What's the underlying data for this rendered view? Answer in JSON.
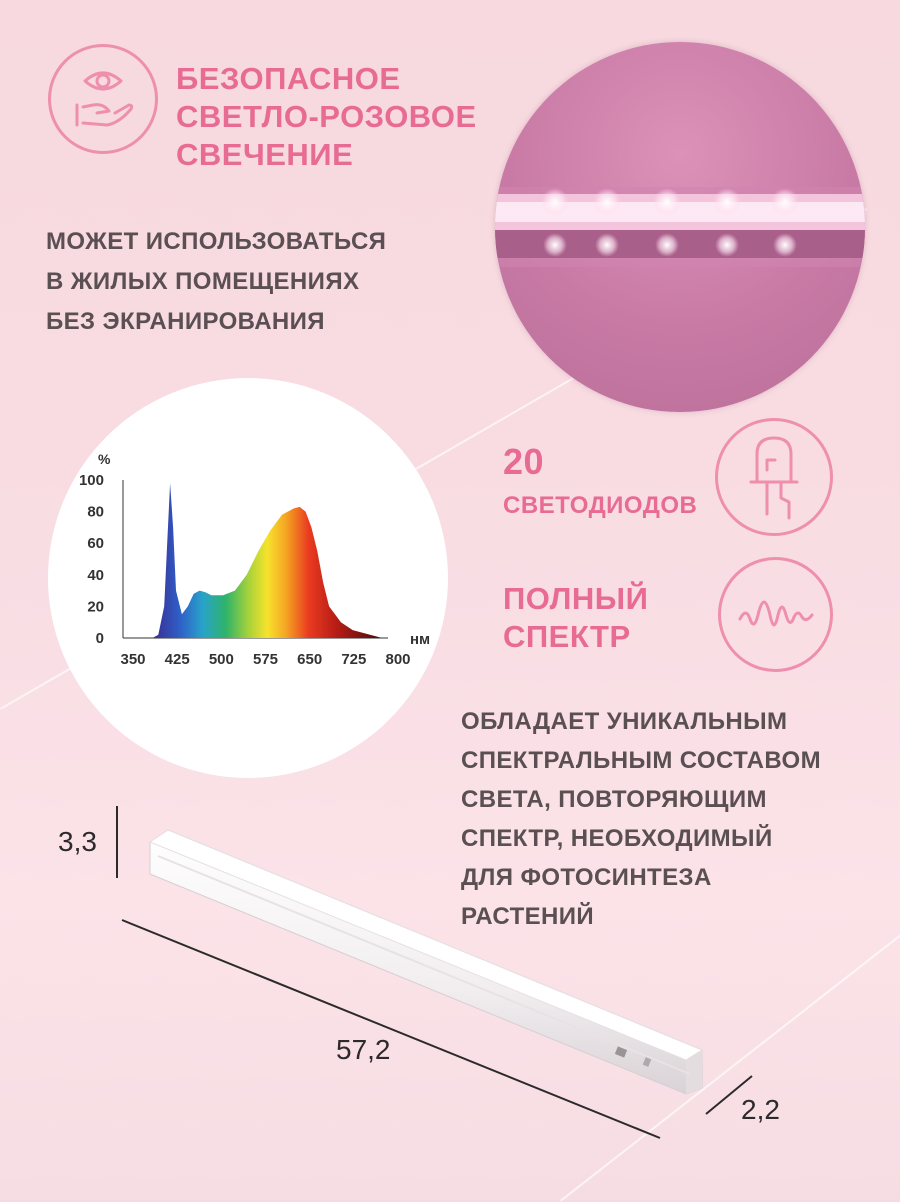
{
  "safe_glow": {
    "lines": [
      "БЕЗОПАСНОЕ",
      "СВЕТЛО-РОЗОВОЕ",
      "СВЕЧЕНИЕ"
    ],
    "icon": "eye-hand-icon"
  },
  "usage": {
    "lines": [
      "МОЖЕТ ИСПОЛЬЗОВАТЬСЯ",
      "В ЖИЛЫХ ПОМЕЩЕНИЯХ",
      "БЕЗ ЭКРАНИРОВАНИЯ"
    ]
  },
  "leds": {
    "count": "20",
    "label": "СВЕТОДИОДОВ",
    "icon": "led-diode-icon"
  },
  "spectrum_feature": {
    "lines": [
      "ПОЛНЫЙ",
      "СПЕКТР"
    ],
    "icon": "waveform-icon"
  },
  "description": {
    "lines": [
      "ОБЛАДАЕТ УНИКАЛЬНЫМ",
      "СПЕКТРАЛЬНЫМ СОСТАВОМ",
      "СВЕТА, ПОВТОРЯЮЩИМ",
      "СПЕКТР, НЕОБХОДИМЫЙ",
      "ДЛЯ ФОТОСИНТЕЗА",
      "РАСТЕНИЙ"
    ]
  },
  "dimensions": {
    "height": "3,3",
    "length": "57,2",
    "depth": "2,2"
  },
  "colors": {
    "accent_pink": "#e86b93",
    "text_gray": "#5a4f52",
    "icon_outline": "#ee8fae"
  },
  "chart_data": {
    "type": "area",
    "ylabel": "%",
    "xlabel": "нм",
    "x_ticks": [
      "350",
      "425",
      "500",
      "575",
      "650",
      "725",
      "800"
    ],
    "y_ticks": [
      "0",
      "20",
      "40",
      "60",
      "80",
      "100"
    ],
    "xlim": [
      350,
      800
    ],
    "ylim": [
      0,
      100
    ],
    "x": [
      400,
      410,
      420,
      425,
      430,
      435,
      440,
      450,
      460,
      470,
      480,
      490,
      500,
      510,
      520,
      540,
      560,
      580,
      600,
      620,
      640,
      650,
      660,
      670,
      680,
      690,
      700,
      720,
      740,
      760,
      780,
      790
    ],
    "values": [
      0,
      2,
      20,
      60,
      98,
      70,
      30,
      15,
      20,
      28,
      30,
      29,
      27,
      27,
      27,
      30,
      40,
      55,
      68,
      78,
      82,
      83,
      80,
      70,
      55,
      35,
      20,
      10,
      5,
      3,
      1,
      0
    ]
  }
}
